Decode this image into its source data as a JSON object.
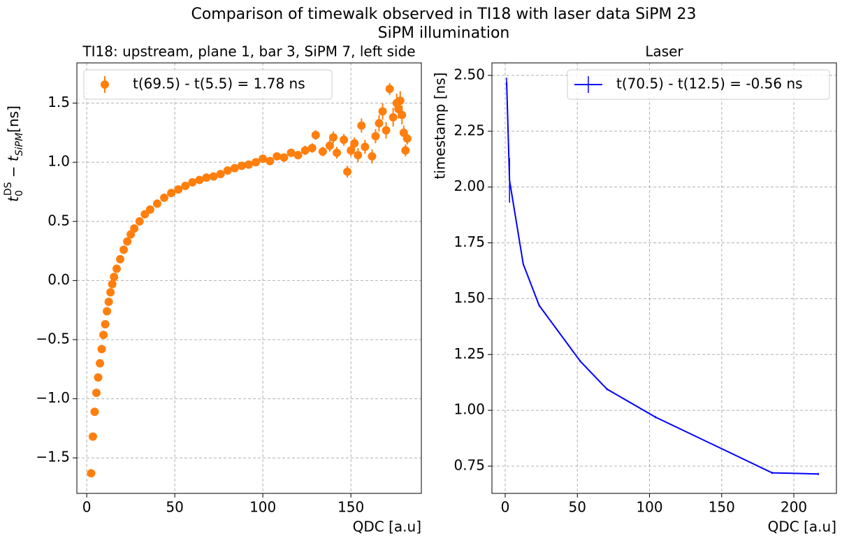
{
  "title": "Comparison of timewalk observed in TI18 with laser data SiPM 23",
  "subtitle": "SiPM illumination",
  "chart_data": [
    {
      "type": "scatter",
      "title": "TI18: upstream, plane 1, bar 3, SiPM 7, left side",
      "xlabel": "QDC [a.u]",
      "ylabel": [
        "t",
        "0",
        "DS",
        " − t",
        "SiPM",
        "[ns]"
      ],
      "xlim": [
        -5.6,
        190
      ],
      "ylim": [
        -1.8,
        1.84
      ],
      "xticks": [
        0,
        50,
        100,
        150
      ],
      "yticks": [
        {
          "value": -1.5,
          "label": "−1.5"
        },
        {
          "value": -1.0,
          "label": "−1.0"
        },
        {
          "value": -0.5,
          "label": "−0.5"
        },
        {
          "value": 0,
          "label": "0.0"
        },
        0.5,
        {
          "value": 1.0,
          "label": "1.0"
        },
        1.5
      ],
      "grid": true,
      "legend": "upper left",
      "series": [
        {
          "name": "t(69.5) - t(5.5) = 1.78 ns",
          "color": "#ff7f0e",
          "x": [
            2.5,
            3.5,
            4.5,
            5.5,
            6.5,
            7.5,
            8.5,
            9.5,
            10.5,
            11.5,
            12.5,
            13.5,
            14.5,
            15.5,
            17,
            19,
            21,
            23,
            25,
            27,
            30,
            33,
            36,
            40,
            44,
            48,
            52,
            56,
            60,
            64,
            68,
            72,
            76,
            80,
            84,
            88,
            92,
            96,
            100,
            104,
            108,
            112,
            116,
            120,
            124,
            128,
            130,
            134,
            138,
            140,
            142,
            146,
            148,
            150,
            152,
            154,
            156,
            158,
            162,
            164,
            166,
            168,
            170,
            172,
            174,
            176,
            177,
            178,
            179,
            180,
            181,
            182
          ],
          "values": [
            -1.63,
            -1.32,
            -1.11,
            -0.95,
            -0.82,
            -0.7,
            -0.58,
            -0.46,
            -0.37,
            -0.26,
            -0.18,
            -0.1,
            -0.03,
            0.03,
            0.1,
            0.18,
            0.26,
            0.33,
            0.39,
            0.44,
            0.5,
            0.56,
            0.6,
            0.65,
            0.7,
            0.74,
            0.77,
            0.8,
            0.83,
            0.85,
            0.87,
            0.88,
            0.9,
            0.93,
            0.95,
            0.97,
            0.98,
            1.0,
            1.03,
            1.01,
            1.05,
            1.04,
            1.08,
            1.06,
            1.1,
            1.12,
            1.23,
            1.09,
            1.14,
            1.21,
            1.08,
            1.19,
            0.92,
            1.1,
            1.16,
            1.06,
            1.31,
            1.13,
            1.05,
            1.22,
            1.33,
            1.43,
            1.27,
            1.62,
            1.38,
            1.5,
            1.45,
            1.52,
            1.4,
            1.25,
            1.1,
            1.2
          ],
          "errors": [
            0.01,
            0.01,
            0.01,
            0.01,
            0.01,
            0.01,
            0.01,
            0.01,
            0.01,
            0.01,
            0.01,
            0.01,
            0.01,
            0.01,
            0.01,
            0.01,
            0.01,
            0.01,
            0.01,
            0.01,
            0.01,
            0.01,
            0.01,
            0.01,
            0.01,
            0.01,
            0.01,
            0.01,
            0.02,
            0.02,
            0.02,
            0.02,
            0.02,
            0.02,
            0.02,
            0.02,
            0.02,
            0.03,
            0.03,
            0.03,
            0.03,
            0.03,
            0.03,
            0.03,
            0.04,
            0.04,
            0.04,
            0.04,
            0.05,
            0.05,
            0.05,
            0.05,
            0.05,
            0.05,
            0.05,
            0.06,
            0.06,
            0.06,
            0.06,
            0.06,
            0.07,
            0.07,
            0.07,
            0.05,
            0.08,
            0.08,
            0.08,
            0.08,
            0.08,
            0.06,
            0.05,
            0.05
          ]
        }
      ]
    },
    {
      "type": "line",
      "title": "Laser",
      "xlabel": "QDC [a.u]",
      "ylabel": "timestamp [ns]",
      "xlim": [
        -9.2,
        229.5
      ],
      "ylim": [
        0.628,
        2.556
      ],
      "xticks": [
        0,
        50,
        100,
        150,
        200
      ],
      "yticks": [
        {
          "value": 0.75,
          "label": "0.75"
        },
        {
          "value": 1.0,
          "label": "1.00"
        },
        {
          "value": 1.25,
          "label": "1.25"
        },
        {
          "value": 1.5,
          "label": "1.50"
        },
        {
          "value": 1.75,
          "label": "1.75"
        },
        {
          "value": 2.0,
          "label": "2.00"
        },
        {
          "value": 2.25,
          "label": "2.25"
        },
        {
          "value": 2.5,
          "label": "2.50"
        }
      ],
      "grid": true,
      "legend": "upper right",
      "series": [
        {
          "name": "t(70.5) - t(12.5) = -0.56 ns",
          "color": "#0000ff",
          "x": [
            1,
            3,
            12.5,
            23.5,
            52,
            70.5,
            104,
            185,
            217
          ],
          "values": [
            2.47,
            2.03,
            1.655,
            1.47,
            1.22,
            1.095,
            0.97,
            0.72,
            0.715
          ],
          "errors": [
            0.02,
            0.1,
            0.005,
            0.005,
            0.005,
            0.005,
            0.005,
            0.005,
            0.005
          ]
        }
      ]
    }
  ]
}
